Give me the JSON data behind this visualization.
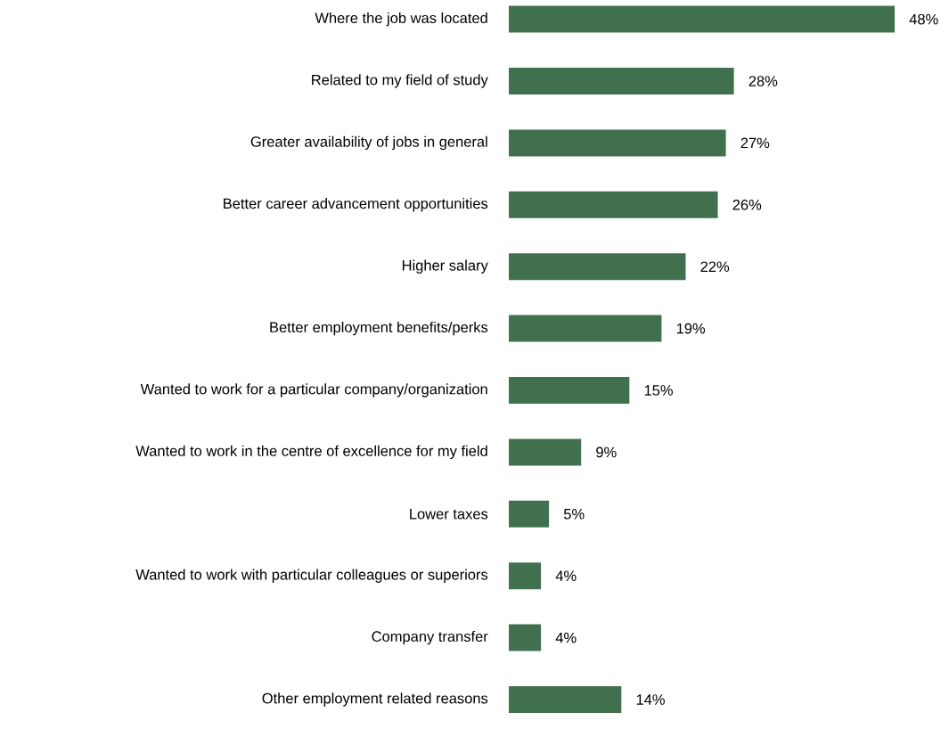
{
  "chart_data": {
    "type": "bar",
    "orientation": "horizontal",
    "color": "#41704f",
    "categories": [
      "Where the job was located",
      "Related to my field of study",
      "Greater availability of jobs in general",
      "Better career advancement opportunities",
      "Higher salary",
      "Better employment benefits/perks",
      "Wanted to work for a particular company/organization",
      "Wanted to work in the centre of excellence for my field",
      "Lower taxes",
      "Wanted to work with particular colleagues or superiors",
      "Company transfer",
      "Other employment related reasons"
    ],
    "values": [
      48,
      28,
      27,
      26,
      22,
      19,
      15,
      9,
      5,
      4,
      4,
      14
    ],
    "value_labels": [
      "48%",
      "28%",
      "27%",
      "26%",
      "22%",
      "19%",
      "15%",
      "9%",
      "5%",
      "4%",
      "4%",
      "14%"
    ]
  }
}
